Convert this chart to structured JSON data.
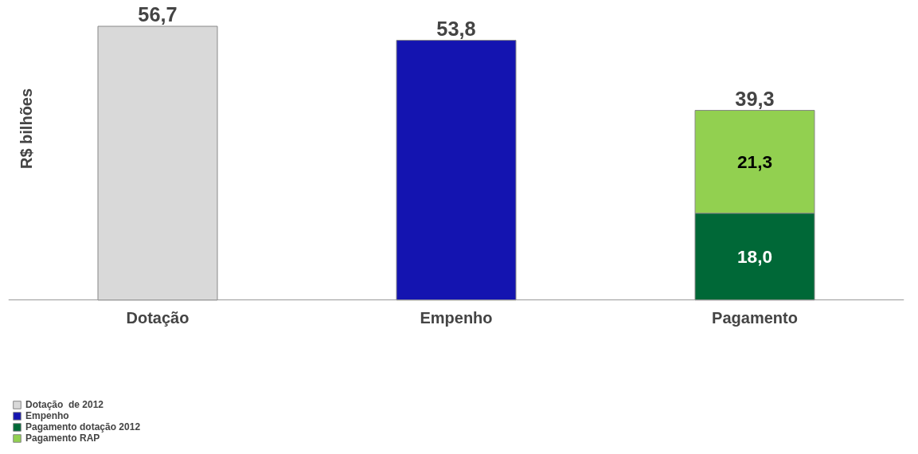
{
  "chart_data": {
    "type": "bar",
    "stacked": true,
    "ylabel": "R$ bilhões",
    "categories": [
      "Dotação",
      "Empenho",
      "Pagamento"
    ],
    "series": [
      {
        "name": "Dotação  de 2012",
        "color": "#d9d9d9",
        "values": [
          56.7,
          null,
          null
        ]
      },
      {
        "name": "Empenho",
        "color": "#1414b0",
        "values": [
          null,
          53.8,
          null
        ]
      },
      {
        "name": "Pagamento dotação 2012",
        "color": "#006837",
        "values": [
          null,
          null,
          18.0
        ],
        "value_labels": [
          null,
          null,
          "18,0"
        ]
      },
      {
        "name": "Pagamento RAP",
        "color": "#92d050",
        "values": [
          null,
          null,
          21.3
        ],
        "value_labels": [
          null,
          null,
          "21,3"
        ]
      }
    ],
    "totals": [
      "56,7",
      "53,8",
      "39,3"
    ],
    "grid": false,
    "legend": "bottom left"
  }
}
